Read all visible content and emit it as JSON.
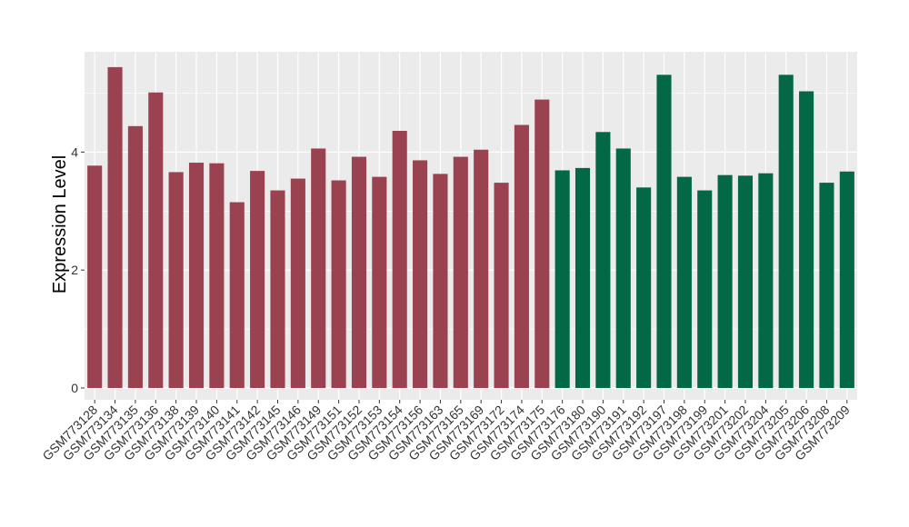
{
  "chart_data": {
    "type": "bar",
    "ylabel": "Expression Level",
    "xlabel": "",
    "title": "",
    "ylim": [
      -0.2,
      5.7
    ],
    "yticks": [
      0,
      2,
      4
    ],
    "grid": true,
    "legend": "none",
    "colors": {
      "group1": "#9a4250",
      "group2": "#036845",
      "panel": "#ebebeb",
      "grid": "#ffffff"
    },
    "categories": [
      "GSM773128",
      "GSM773134",
      "GSM773135",
      "GSM773136",
      "GSM773138",
      "GSM773139",
      "GSM773140",
      "GSM773141",
      "GSM773142",
      "GSM773145",
      "GSM773146",
      "GSM773149",
      "GSM773151",
      "GSM773152",
      "GSM773153",
      "GSM773154",
      "GSM773156",
      "GSM773163",
      "GSM773165",
      "GSM773169",
      "GSM773172",
      "GSM773174",
      "GSM773175",
      "GSM773176",
      "GSM773180",
      "GSM773190",
      "GSM773191",
      "GSM773192",
      "GSM773197",
      "GSM773198",
      "GSM773199",
      "GSM773201",
      "GSM773202",
      "GSM773204",
      "GSM773205",
      "GSM773206",
      "GSM773208",
      "GSM773209"
    ],
    "values": [
      3.77,
      5.44,
      4.44,
      5.01,
      3.66,
      3.82,
      3.81,
      3.15,
      3.68,
      3.35,
      3.55,
      4.06,
      3.52,
      3.92,
      3.58,
      4.36,
      3.86,
      3.63,
      3.92,
      4.04,
      3.48,
      4.46,
      4.89,
      3.69,
      3.73,
      4.34,
      4.06,
      3.4,
      5.31,
      3.58,
      3.35,
      3.61,
      3.6,
      3.64,
      5.31,
      5.03,
      3.48,
      3.67
    ],
    "groups": [
      1,
      1,
      1,
      1,
      1,
      1,
      1,
      1,
      1,
      1,
      1,
      1,
      1,
      1,
      1,
      1,
      1,
      1,
      1,
      1,
      1,
      1,
      1,
      2,
      2,
      2,
      2,
      2,
      2,
      2,
      2,
      2,
      2,
      2,
      2,
      2,
      2,
      2
    ]
  }
}
